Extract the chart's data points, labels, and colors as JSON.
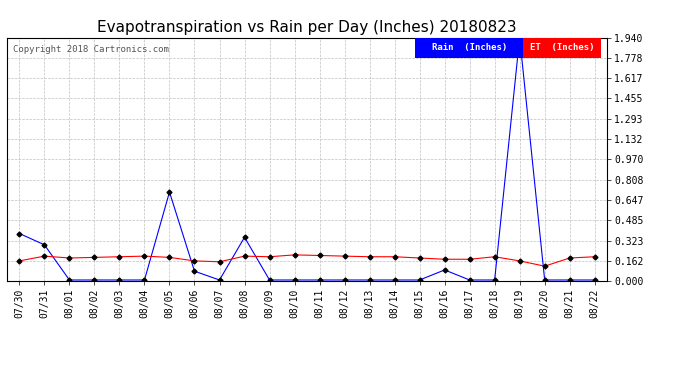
{
  "title": "Evapotranspiration vs Rain per Day (Inches) 20180823",
  "copyright": "Copyright 2018 Cartronics.com",
  "dates": [
    "07/30",
    "07/31",
    "08/01",
    "08/02",
    "08/03",
    "08/04",
    "08/05",
    "08/06",
    "08/07",
    "08/08",
    "08/09",
    "08/10",
    "08/11",
    "08/12",
    "08/13",
    "08/14",
    "08/15",
    "08/16",
    "08/17",
    "08/18",
    "08/19",
    "08/20",
    "08/21",
    "08/22"
  ],
  "rain": [
    0.38,
    0.29,
    0.01,
    0.01,
    0.01,
    0.01,
    0.71,
    0.08,
    0.01,
    0.35,
    0.01,
    0.01,
    0.01,
    0.01,
    0.01,
    0.01,
    0.01,
    0.09,
    0.01,
    0.01,
    1.94,
    0.01,
    0.01,
    0.01
  ],
  "et": [
    0.162,
    0.2,
    0.185,
    0.19,
    0.195,
    0.2,
    0.19,
    0.162,
    0.155,
    0.2,
    0.195,
    0.21,
    0.205,
    0.2,
    0.195,
    0.195,
    0.185,
    0.175,
    0.175,
    0.195,
    0.162,
    0.12,
    0.185,
    0.195
  ],
  "rain_color": "#0000ff",
  "et_color": "#ff0000",
  "background_color": "#ffffff",
  "grid_color": "#c0c0c0",
  "yticks": [
    0.0,
    0.162,
    0.323,
    0.485,
    0.647,
    0.808,
    0.97,
    1.132,
    1.293,
    1.455,
    1.617,
    1.778,
    1.94
  ],
  "ylim": [
    0.0,
    1.94
  ],
  "legend_rain_bg": "#0000ff",
  "legend_et_bg": "#ff0000",
  "legend_rain_label": "Rain  (Inches)",
  "legend_et_label": "ET  (Inches)",
  "title_fontsize": 11,
  "copyright_fontsize": 6.5,
  "tick_fontsize": 7,
  "marker": "D",
  "markersize": 2.5,
  "marker_color": "#000000"
}
